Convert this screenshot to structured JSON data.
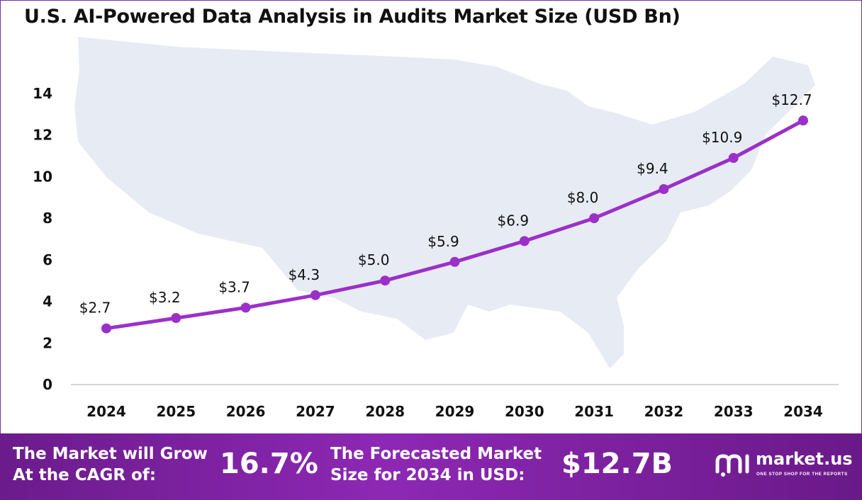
{
  "chart_data": {
    "type": "line",
    "title": "U.S. AI-Powered Data Analysis in Audits Market Size (USD Bn)",
    "xlabel": "",
    "ylabel": "",
    "x": [
      "2024",
      "2025",
      "2026",
      "2027",
      "2028",
      "2029",
      "2030",
      "2031",
      "2032",
      "2033",
      "2034"
    ],
    "values": [
      2.7,
      3.2,
      3.7,
      4.3,
      5.0,
      5.9,
      6.9,
      8.0,
      9.4,
      10.9,
      12.7
    ],
    "data_labels": [
      "$2.7",
      "$3.2",
      "$3.7",
      "$4.3",
      "$5.0",
      "$5.9",
      "$6.9",
      "$8.0",
      "$9.4",
      "$10.9",
      "$12.7"
    ],
    "yticks": [
      "0",
      "2",
      "4",
      "6",
      "8",
      "10",
      "12",
      "14"
    ],
    "ylim": [
      0,
      14
    ],
    "grid": false,
    "legend": "none",
    "line_color": "#9b30c8",
    "background_map": "united-states-map"
  },
  "footer": {
    "cagr_label_line1": "The Market will Grow",
    "cagr_label_line2": "At the CAGR of:",
    "cagr_value": "16.7%",
    "forecast_label_line1": "The Forecasted Market",
    "forecast_label_line2": "Size for 2034 in USD:",
    "forecast_value": "$12.7B",
    "brand_name": "market.us",
    "brand_tagline": "ONE STOP SHOP FOR THE REPORTS"
  },
  "colors": {
    "accent": "#9b30c8",
    "footer_bg": "#7a22a0",
    "map_fill": "#e7ebf4"
  }
}
